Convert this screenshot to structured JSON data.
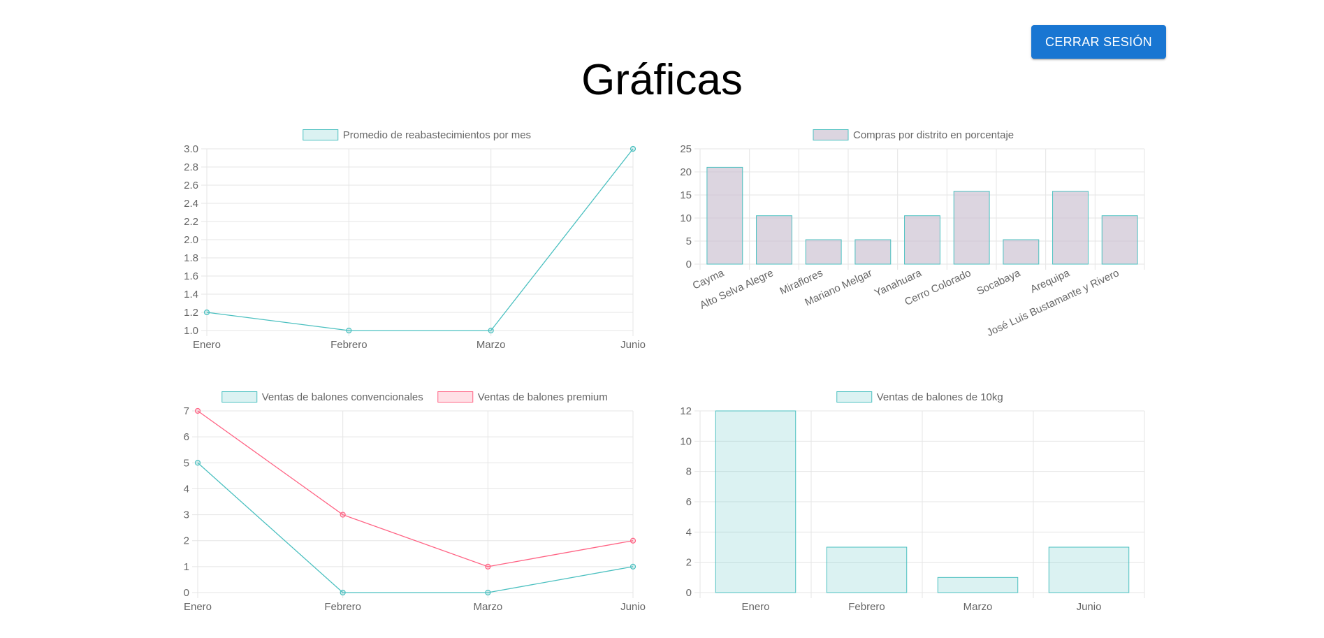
{
  "header": {
    "logout_label": "CERRAR SESIÓN",
    "title": "Gráficas"
  },
  "colors": {
    "accent_button": "#1976d2",
    "teal_stroke": "#4bc0c0",
    "teal_fill": "rgba(75,192,192,0.2)",
    "pink_stroke": "#ff6384",
    "pink_fill": "rgba(255,99,132,0.2)",
    "mauve_fill": "rgba(201,190,207,0.65)",
    "grid": "#e5e5e5",
    "tick_text": "#666666"
  },
  "chart_data": [
    {
      "type": "line",
      "categories": [
        "Enero",
        "Febrero",
        "Marzo",
        "Junio"
      ],
      "series": [
        {
          "name": "Promedio de reabastecimientos por mes",
          "values": [
            1.2,
            1.0,
            1.0,
            3.0
          ],
          "color": "#4bc0c0",
          "fill": "rgba(75,192,192,0.2)"
        }
      ],
      "ylim": [
        1.0,
        3.0
      ],
      "yticks": [
        "1.0",
        "1.2",
        "1.4",
        "1.6",
        "1.8",
        "2.0",
        "2.2",
        "2.4",
        "2.6",
        "2.8",
        "3.0"
      ],
      "grid": true,
      "legend": "top-center"
    },
    {
      "type": "bar",
      "categories": [
        "Cayma",
        "Alto Selva Alegre",
        "Miraflores",
        "Mariano Melgar",
        "Yanahuara",
        "Cerro Colorado",
        "Socabaya",
        "Arequipa",
        "José Luis Bustamante y Rivero"
      ],
      "series": [
        {
          "name": "Compras por distrito en porcentaje",
          "values": [
            21,
            10.5,
            5.3,
            5.3,
            10.5,
            15.8,
            5.3,
            15.8,
            10.5
          ],
          "color": "#4bc0c0",
          "fill": "rgba(201,190,207,0.65)"
        }
      ],
      "ylim": [
        0,
        25
      ],
      "yticks": [
        "0",
        "5",
        "10",
        "15",
        "20",
        "25"
      ],
      "grid": true,
      "legend": "top-center"
    },
    {
      "type": "line",
      "categories": [
        "Enero",
        "Febrero",
        "Marzo",
        "Junio"
      ],
      "series": [
        {
          "name": "Ventas de balones convencionales",
          "values": [
            5,
            0,
            0,
            1
          ],
          "color": "#4bc0c0",
          "fill": "rgba(75,192,192,0.2)"
        },
        {
          "name": "Ventas de balones premium",
          "values": [
            7,
            3,
            1,
            2
          ],
          "color": "#ff6384",
          "fill": "rgba(255,99,132,0.2)"
        }
      ],
      "ylim": [
        0,
        7
      ],
      "yticks": [
        "0",
        "1",
        "2",
        "3",
        "4",
        "5",
        "6",
        "7"
      ],
      "grid": true,
      "legend": "top-center"
    },
    {
      "type": "bar",
      "categories": [
        "Enero",
        "Febrero",
        "Marzo",
        "Junio"
      ],
      "series": [
        {
          "name": "Ventas de balones de 10kg",
          "values": [
            12,
            3,
            1,
            3
          ],
          "color": "#4bc0c0",
          "fill": "rgba(75,192,192,0.2)"
        }
      ],
      "ylim": [
        0,
        12
      ],
      "yticks": [
        "0",
        "2",
        "4",
        "6",
        "8",
        "10",
        "12"
      ],
      "grid": true,
      "legend": "top-center"
    }
  ]
}
